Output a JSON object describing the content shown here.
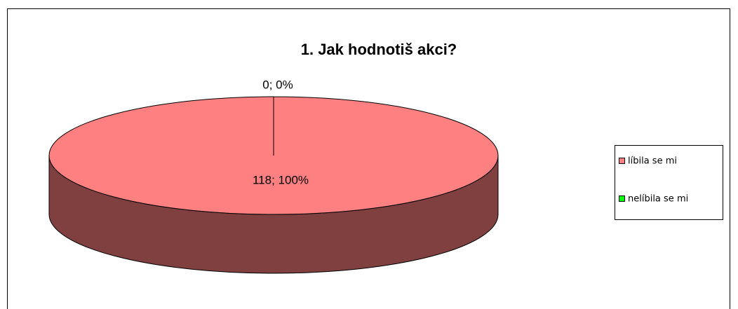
{
  "chart_data": {
    "type": "pie",
    "title": "1. Jak hodnotiš akci?",
    "categories": [
      "líbila se mi",
      "nelíbila se mi"
    ],
    "values": [
      118,
      0
    ],
    "value_labels": [
      "118; 100%",
      "0; 0%"
    ],
    "colors": [
      "#ff8080",
      "#00ff00"
    ],
    "legend": "right"
  }
}
